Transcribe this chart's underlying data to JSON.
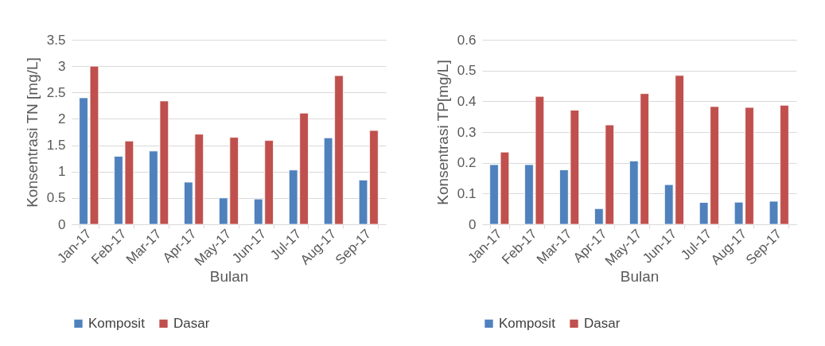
{
  "chart_data": [
    {
      "type": "bar",
      "categories": [
        "Jan-17",
        "Feb-17",
        "Mar-17",
        "Apr-17",
        "May-17",
        "Jun-17",
        "Jul-17",
        "Aug-17",
        "Sep-17"
      ],
      "xlabel": "Bulan",
      "ylabel": "Konsentrasi TN [mg/L]",
      "ylim": [
        0,
        3.5
      ],
      "yticks": [
        0,
        0.5,
        1,
        1.5,
        2,
        2.5,
        3,
        3.5
      ],
      "grid": "y",
      "legend": "bottom",
      "series": [
        {
          "name": "Komposit",
          "color": "#4f81bd",
          "values": [
            2.4,
            1.29,
            1.39,
            0.8,
            0.5,
            0.48,
            1.03,
            1.64,
            0.84
          ]
        },
        {
          "name": "Dasar",
          "color": "#c0504d",
          "values": [
            3.0,
            1.58,
            2.34,
            1.71,
            1.65,
            1.59,
            2.11,
            2.82,
            1.78
          ]
        }
      ]
    },
    {
      "type": "bar",
      "categories": [
        "Jan-17",
        "Feb-17",
        "Mar-17",
        "Apr-17",
        "May-17",
        "Jun-17",
        "Jul-17",
        "Aug-17",
        "Sep-17"
      ],
      "xlabel": "Bulan",
      "ylabel": "Konsentrasi TP[mg/L]",
      "ylim": [
        0,
        0.6
      ],
      "yticks": [
        0,
        0.1,
        0.2,
        0.3,
        0.4,
        0.5,
        0.6
      ],
      "grid": "y",
      "legend": "bottom",
      "series": [
        {
          "name": "Komposit",
          "color": "#4f81bd",
          "values": [
            0.194,
            0.194,
            0.177,
            0.051,
            0.206,
            0.129,
            0.071,
            0.072,
            0.075
          ]
        },
        {
          "name": "Dasar",
          "color": "#c0504d",
          "values": [
            0.235,
            0.416,
            0.371,
            0.323,
            0.425,
            0.484,
            0.383,
            0.38,
            0.387
          ]
        }
      ]
    }
  ]
}
